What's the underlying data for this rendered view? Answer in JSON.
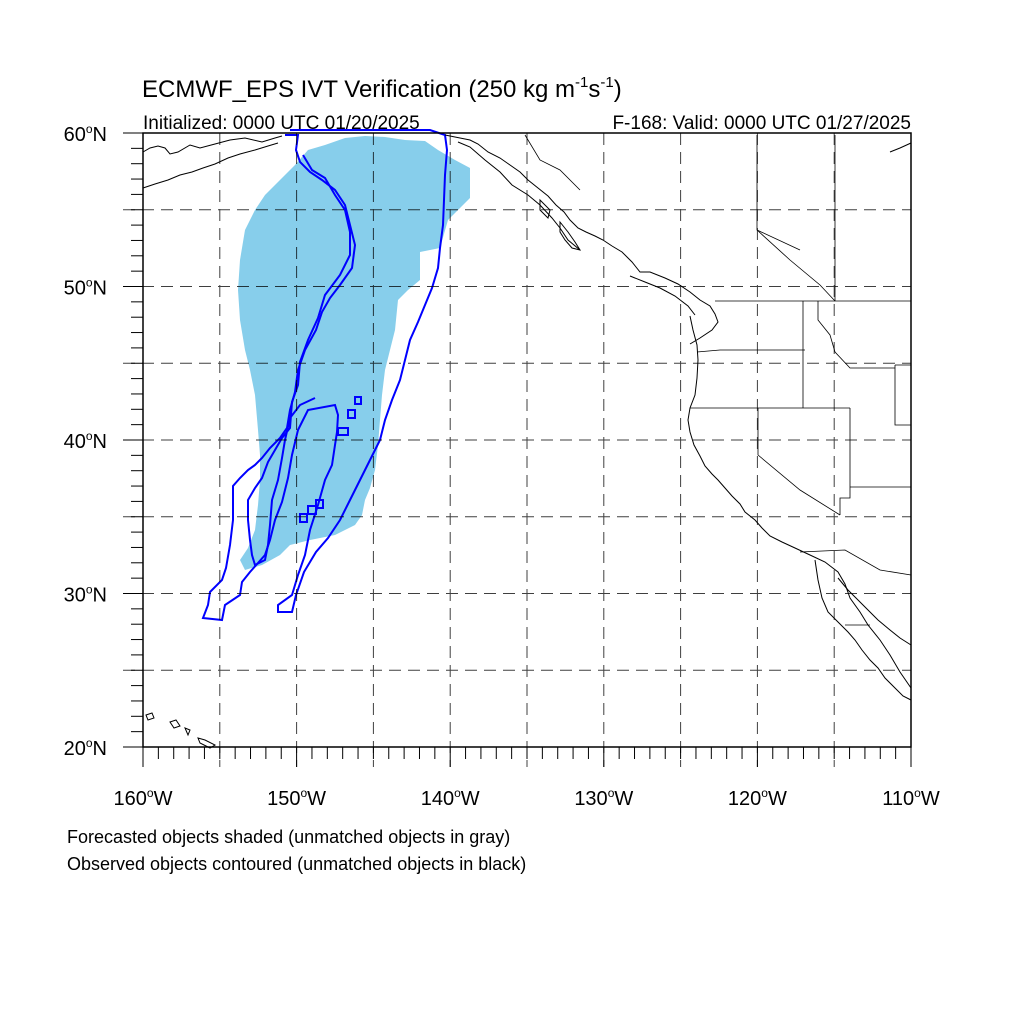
{
  "title": {
    "main": "ECMWF_EPS IVT Verification (250 kg m",
    "sup1": "-1",
    "mid": "s",
    "sup2": "-1",
    "end": ")"
  },
  "subtitle_left": "Initialized: 0000 UTC 01/20/2025",
  "subtitle_right": "F-168: Valid: 0000 UTC 01/27/2025",
  "lat_labels": [
    {
      "deg": "60",
      "hemi": "N",
      "value": 60
    },
    {
      "deg": "50",
      "hemi": "N",
      "value": 50
    },
    {
      "deg": "40",
      "hemi": "N",
      "value": 40
    },
    {
      "deg": "30",
      "hemi": "N",
      "value": 30
    },
    {
      "deg": "20",
      "hemi": "N",
      "value": 20
    }
  ],
  "lon_labels": [
    {
      "deg": "160",
      "hemi": "W",
      "value": -160
    },
    {
      "deg": "150",
      "hemi": "W",
      "value": -150
    },
    {
      "deg": "140",
      "hemi": "W",
      "value": -140
    },
    {
      "deg": "130",
      "hemi": "W",
      "value": -130
    },
    {
      "deg": "120",
      "hemi": "W",
      "value": -120
    },
    {
      "deg": "110",
      "hemi": "W",
      "value": -110
    }
  ],
  "map_extent": {
    "lon_min": -160,
    "lon_max": -110,
    "lat_min": 20,
    "lat_max": 60
  },
  "grid_interval_deg": 5,
  "caption_lines": [
    "Forecasted objects shaded (unmatched objects in gray)",
    "Observed objects contoured (unmatched objects in black)"
  ],
  "colors": {
    "forecast_fill": "#87ceeb",
    "observed_contour": "#0000ff",
    "coastline": "#000000",
    "grid": "#000000"
  }
}
